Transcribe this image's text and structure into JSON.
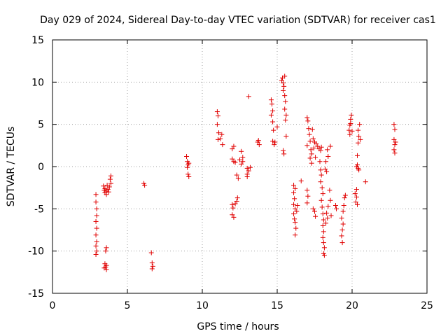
{
  "chart_data": {
    "type": "scatter",
    "title": "Day 029 of 2024, Sidereal Day-to-day VTEC variation (SDTVAR) for receiver cas1",
    "xlabel": "GPS time / hours",
    "ylabel": "SDTVAR / TECUs",
    "xlim": [
      0,
      25
    ],
    "ylim": [
      -15,
      15
    ],
    "xticks": [
      0,
      5,
      10,
      15,
      20,
      25
    ],
    "yticks": [
      -15,
      -10,
      -5,
      0,
      5,
      10,
      15
    ],
    "grid": true,
    "marker": "+",
    "marker_color": "#e00000",
    "series": [
      {
        "name": "SDTVAR",
        "points": [
          [
            2.9,
            -3.3
          ],
          [
            2.9,
            -4.2
          ],
          [
            2.95,
            -5.0
          ],
          [
            2.95,
            -5.8
          ],
          [
            2.9,
            -6.5
          ],
          [
            2.95,
            -7.3
          ],
          [
            2.9,
            -8.1
          ],
          [
            2.95,
            -8.9
          ],
          [
            2.9,
            -9.4
          ],
          [
            2.95,
            -10.0
          ],
          [
            2.9,
            -10.4
          ],
          [
            3.4,
            -2.3
          ],
          [
            3.5,
            -2.6
          ],
          [
            3.6,
            -2.9
          ],
          [
            3.5,
            -3.1
          ],
          [
            3.7,
            -2.7
          ],
          [
            3.8,
            -2.4
          ],
          [
            3.9,
            -2.0
          ],
          [
            3.85,
            -1.5
          ],
          [
            3.9,
            -1.1
          ],
          [
            3.6,
            -3.3
          ],
          [
            3.75,
            -3.0
          ],
          [
            3.45,
            -2.8
          ],
          [
            3.65,
            -2.2
          ],
          [
            3.5,
            -11.5
          ],
          [
            3.55,
            -11.9
          ],
          [
            3.6,
            -12.2
          ],
          [
            3.45,
            -12.0
          ],
          [
            3.6,
            -11.7
          ],
          [
            3.55,
            -10.0
          ],
          [
            3.6,
            -9.6
          ],
          [
            6.1,
            -2.0
          ],
          [
            6.15,
            -2.2
          ],
          [
            6.6,
            -10.2
          ],
          [
            6.65,
            -11.4
          ],
          [
            6.7,
            -11.8
          ],
          [
            6.65,
            -12.1
          ],
          [
            8.95,
            1.2
          ],
          [
            9.0,
            0.6
          ],
          [
            9.05,
            0.2
          ],
          [
            9.1,
            0.4
          ],
          [
            9.0,
            -0.1
          ],
          [
            9.05,
            -0.9
          ],
          [
            9.1,
            -1.2
          ],
          [
            11.0,
            6.5
          ],
          [
            11.05,
            6.0
          ],
          [
            11.0,
            5.0
          ],
          [
            11.1,
            4.0
          ],
          [
            11.05,
            3.2
          ],
          [
            11.2,
            3.3
          ],
          [
            11.3,
            3.8
          ],
          [
            11.35,
            2.6
          ],
          [
            12.0,
            2.1
          ],
          [
            12.1,
            2.4
          ],
          [
            12.0,
            0.9
          ],
          [
            12.1,
            0.6
          ],
          [
            12.2,
            0.5
          ],
          [
            12.0,
            -4.5
          ],
          [
            12.05,
            -4.9
          ],
          [
            12.0,
            -5.7
          ],
          [
            12.1,
            -6.0
          ],
          [
            12.2,
            -4.4
          ],
          [
            12.3,
            -4.1
          ],
          [
            12.35,
            -3.7
          ],
          [
            12.3,
            -1.0
          ],
          [
            12.4,
            -1.4
          ],
          [
            12.5,
            0.8
          ],
          [
            12.6,
            1.8
          ],
          [
            12.7,
            0.6
          ],
          [
            12.6,
            0.3
          ],
          [
            12.7,
            1.1
          ],
          [
            13.0,
            -0.2
          ],
          [
            13.1,
            -0.5
          ],
          [
            13.0,
            -0.9
          ],
          [
            13.2,
            -0.1
          ],
          [
            13.0,
            -1.2
          ],
          [
            13.1,
            8.3
          ],
          [
            13.7,
            2.9
          ],
          [
            13.8,
            2.6
          ],
          [
            13.75,
            3.1
          ],
          [
            14.6,
            7.9
          ],
          [
            14.65,
            7.4
          ],
          [
            14.7,
            6.6
          ],
          [
            14.6,
            6.1
          ],
          [
            14.7,
            5.3
          ],
          [
            14.75,
            4.3
          ],
          [
            14.7,
            3.0
          ],
          [
            14.8,
            2.6
          ],
          [
            14.85,
            2.9
          ],
          [
            15.0,
            4.7
          ],
          [
            15.3,
            10.2
          ],
          [
            15.35,
            10.5
          ],
          [
            15.4,
            9.9
          ],
          [
            15.5,
            10.7
          ],
          [
            15.45,
            9.5
          ],
          [
            15.4,
            9.0
          ],
          [
            15.5,
            8.4
          ],
          [
            15.55,
            7.7
          ],
          [
            15.5,
            6.8
          ],
          [
            15.6,
            6.1
          ],
          [
            15.55,
            5.5
          ],
          [
            15.6,
            3.6
          ],
          [
            15.4,
            1.9
          ],
          [
            15.45,
            1.5
          ],
          [
            16.1,
            -2.2
          ],
          [
            16.2,
            -2.6
          ],
          [
            16.1,
            -3.1
          ],
          [
            16.15,
            -3.8
          ],
          [
            16.1,
            -4.5
          ],
          [
            16.2,
            -5.0
          ],
          [
            16.1,
            -5.6
          ],
          [
            16.15,
            -6.2
          ],
          [
            16.2,
            -6.6
          ],
          [
            16.25,
            -7.3
          ],
          [
            16.2,
            -8.1
          ],
          [
            16.3,
            -5.3
          ],
          [
            16.35,
            -4.6
          ],
          [
            16.6,
            -1.7
          ],
          [
            17.0,
            -2.8
          ],
          [
            17.05,
            -3.5
          ],
          [
            17.0,
            -4.3
          ],
          [
            17.0,
            5.8
          ],
          [
            17.05,
            5.4
          ],
          [
            17.1,
            4.5
          ],
          [
            17.15,
            3.8
          ],
          [
            17.2,
            3.0
          ],
          [
            17.25,
            2.0
          ],
          [
            17.3,
            1.5
          ],
          [
            17.0,
            2.5
          ],
          [
            17.35,
            4.4
          ],
          [
            17.4,
            3.3
          ],
          [
            17.5,
            2.9
          ],
          [
            17.45,
            2.2
          ],
          [
            17.55,
            1.1
          ],
          [
            17.6,
            2.7
          ],
          [
            17.3,
            0.4
          ],
          [
            17.2,
            1.0
          ],
          [
            17.5,
            -5.3
          ],
          [
            17.55,
            -5.9
          ],
          [
            17.4,
            -5.0
          ],
          [
            17.7,
            2.4
          ],
          [
            17.8,
            2.1
          ],
          [
            17.9,
            1.9
          ],
          [
            17.95,
            2.3
          ],
          [
            17.85,
            0.6
          ],
          [
            17.9,
            -0.4
          ],
          [
            17.95,
            -1.0
          ],
          [
            17.9,
            -1.8
          ],
          [
            18.0,
            -2.5
          ],
          [
            18.05,
            -3.2
          ],
          [
            17.95,
            -4.0
          ],
          [
            18.0,
            -4.8
          ],
          [
            18.05,
            -5.6
          ],
          [
            18.1,
            -6.3
          ],
          [
            18.05,
            -7.0
          ],
          [
            18.1,
            -7.7
          ],
          [
            18.05,
            -8.4
          ],
          [
            18.1,
            -9.0
          ],
          [
            18.15,
            -9.6
          ],
          [
            18.1,
            -10.3
          ],
          [
            18.15,
            -10.5
          ],
          [
            18.2,
            -0.3
          ],
          [
            18.3,
            -0.6
          ],
          [
            18.25,
            0.6
          ],
          [
            18.35,
            2.0
          ],
          [
            18.4,
            1.2
          ],
          [
            18.3,
            -5.5
          ],
          [
            18.35,
            -6.1
          ],
          [
            18.25,
            -6.7
          ],
          [
            18.4,
            -4.7
          ],
          [
            18.5,
            -2.8
          ],
          [
            18.55,
            -4.0
          ],
          [
            18.6,
            -5.8
          ],
          [
            18.55,
            2.4
          ],
          [
            18.9,
            -4.6
          ],
          [
            18.95,
            -5.0
          ],
          [
            19.3,
            -6.1
          ],
          [
            19.4,
            -6.8
          ],
          [
            19.35,
            -7.5
          ],
          [
            19.3,
            -8.2
          ],
          [
            19.35,
            -9.0
          ],
          [
            19.4,
            -5.3
          ],
          [
            19.45,
            -4.6
          ],
          [
            19.5,
            -3.7
          ],
          [
            19.55,
            -3.4
          ],
          [
            19.8,
            4.3
          ],
          [
            19.85,
            4.9
          ],
          [
            19.9,
            5.6
          ],
          [
            19.95,
            6.1
          ],
          [
            19.85,
            3.8
          ],
          [
            20.0,
            4.2
          ],
          [
            19.9,
            5.1
          ],
          [
            20.2,
            -3.2
          ],
          [
            20.3,
            -3.6
          ],
          [
            20.25,
            -4.2
          ],
          [
            20.35,
            -4.5
          ],
          [
            20.3,
            -2.7
          ],
          [
            20.3,
            0.0
          ],
          [
            20.35,
            0.2
          ],
          [
            20.4,
            -0.2
          ],
          [
            20.35,
            1.3
          ],
          [
            20.4,
            2.8
          ],
          [
            20.45,
            3.6
          ],
          [
            20.4,
            4.3
          ],
          [
            20.5,
            5.0
          ],
          [
            20.55,
            3.2
          ],
          [
            20.45,
            -0.4
          ],
          [
            20.9,
            -1.8
          ],
          [
            22.8,
            5.0
          ],
          [
            22.85,
            4.4
          ],
          [
            22.8,
            3.2
          ],
          [
            22.85,
            2.6
          ],
          [
            22.9,
            2.9
          ],
          [
            22.8,
            2.0
          ],
          [
            22.85,
            1.6
          ]
        ]
      }
    ]
  }
}
